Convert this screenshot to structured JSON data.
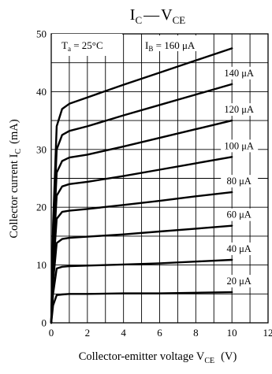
{
  "chart_data": {
    "type": "line",
    "title": "I_C — V_CE",
    "title_parts": {
      "main": "I",
      "main_sub": "C",
      "dash": "—",
      "second": "V",
      "second_sub": "CE"
    },
    "xlabel": "Collector-emitter voltage  V_CE  (V)",
    "xlabel_parts": {
      "text": "Collector-emitter voltage  V",
      "sub": "CE",
      "unit": "(V)"
    },
    "ylabel": "Collector current  I_C  (mA)",
    "ylabel_parts": {
      "text": "Collector current  I",
      "sub": "C",
      "unit": "(mA)"
    },
    "xlim": [
      0,
      12
    ],
    "ylim": [
      0,
      50
    ],
    "xticks": [
      "0",
      "2",
      "4",
      "6",
      "8",
      "10",
      "12"
    ],
    "yticks": [
      "0",
      "10",
      "20",
      "30",
      "40",
      "50"
    ],
    "grid": true,
    "annotations": {
      "ta": {
        "text": "T",
        "sub": "a",
        "rest": " = 25°C"
      },
      "ib": {
        "text": "I",
        "sub": "B",
        "rest": " = 160 μA"
      }
    },
    "series": [
      {
        "name": "20 μA",
        "label": "20 μA",
        "x": [
          0.1,
          0.3,
          0.6,
          1,
          2,
          4,
          6,
          8,
          10
        ],
        "y": [
          3.0,
          4.8,
          4.9,
          5.0,
          5.0,
          5.1,
          5.1,
          5.2,
          5.3
        ]
      },
      {
        "name": "40 μA",
        "label": "40 μA",
        "x": [
          0.1,
          0.3,
          0.6,
          1,
          2,
          4,
          6,
          8,
          10
        ],
        "y": [
          5.0,
          9.4,
          9.7,
          9.8,
          9.9,
          10.1,
          10.3,
          10.6,
          10.9
        ]
      },
      {
        "name": "60 μA",
        "label": "60 μA",
        "x": [
          0.1,
          0.3,
          0.6,
          1,
          2,
          4,
          6,
          8,
          10
        ],
        "y": [
          7.0,
          13.8,
          14.5,
          14.7,
          14.9,
          15.3,
          15.8,
          16.3,
          16.8
        ]
      },
      {
        "name": "80 μA",
        "label": "80 μA",
        "x": [
          0.1,
          0.3,
          0.6,
          1,
          2,
          4,
          6,
          8,
          10
        ],
        "y": [
          9.0,
          18.0,
          19.2,
          19.4,
          19.7,
          20.4,
          21.1,
          21.9,
          22.6
        ]
      },
      {
        "name": "100 μA",
        "label": "100 μA",
        "x": [
          0.1,
          0.3,
          0.6,
          1,
          2,
          4,
          6,
          8,
          10
        ],
        "y": [
          11.0,
          22.0,
          23.6,
          24.0,
          24.4,
          25.4,
          26.5,
          27.6,
          28.7
        ]
      },
      {
        "name": "120 μA",
        "label": "120 μA",
        "x": [
          0.1,
          0.3,
          0.6,
          1,
          2,
          4,
          6,
          8,
          10
        ],
        "y": [
          13.0,
          26.0,
          28.0,
          28.6,
          29.1,
          30.5,
          32.0,
          33.5,
          35.0
        ]
      },
      {
        "name": "140 μA",
        "label": "140 μA",
        "x": [
          0.1,
          0.3,
          0.6,
          1,
          2,
          4,
          6,
          8,
          10
        ],
        "y": [
          15.0,
          30.0,
          32.5,
          33.2,
          34.0,
          35.9,
          37.7,
          39.5,
          41.3
        ]
      },
      {
        "name": "160 μA",
        "label": "",
        "x": [
          0.1,
          0.3,
          0.6,
          1,
          2,
          4,
          6,
          8,
          10
        ],
        "y": [
          17.0,
          34.0,
          37.0,
          37.9,
          39.0,
          41.2,
          43.3,
          45.4,
          47.5
        ]
      }
    ]
  }
}
